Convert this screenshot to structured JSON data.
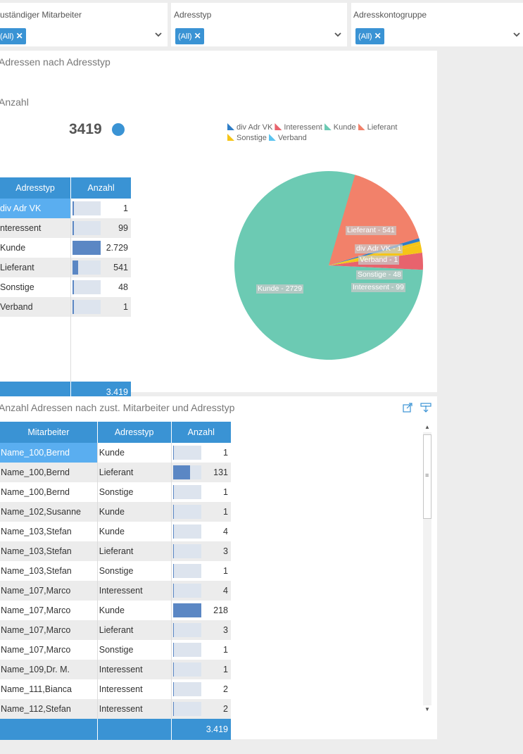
{
  "filters": [
    {
      "label": "uständiger Mitarbeiter",
      "value": "(All)"
    },
    {
      "label": "Adresstyp",
      "value": "(All)"
    },
    {
      "label": "Adresskontogruppe",
      "value": "(All)"
    }
  ],
  "panel1": {
    "title": "Adressen nach Adresstyp",
    "kpi_label": "Anzahl",
    "kpi_value": "3419",
    "table": {
      "headers": [
        "Adresstyp",
        "Anzahl"
      ],
      "rows": [
        {
          "label": "div Adr VK",
          "value": "1",
          "frac": 0.0004
        },
        {
          "label": "nteressent",
          "value": "99",
          "frac": 0.036
        },
        {
          "label": "Kunde",
          "value": "2.729",
          "frac": 1.0
        },
        {
          "label": "Lieferant",
          "value": "541",
          "frac": 0.198
        },
        {
          "label": "Sonstige",
          "value": "48",
          "frac": 0.018
        },
        {
          "label": "Verband",
          "value": "1",
          "frac": 0.0004
        }
      ],
      "total": "3.419"
    }
  },
  "chart_data": {
    "type": "pie",
    "title": "",
    "legend": [
      {
        "name": "div Adr VK",
        "color": "#2f7ec7"
      },
      {
        "name": "Interessent",
        "color": "#e8636d"
      },
      {
        "name": "Kunde",
        "color": "#6ccab3"
      },
      {
        "name": "Lieferant",
        "color": "#f2816a"
      },
      {
        "name": "Sonstige",
        "color": "#f5c518"
      },
      {
        "name": "Verband",
        "color": "#5bc4f0"
      }
    ],
    "slices": [
      {
        "name": "Kunde",
        "value": 2729,
        "label": "Kunde - 2729",
        "color": "#6ccab3"
      },
      {
        "name": "Lieferant",
        "value": 541,
        "label": "Lieferant - 541",
        "color": "#f2816a"
      },
      {
        "name": "div Adr VK",
        "value": 1,
        "label": "div Adr VK - 1",
        "color": "#2f7ec7"
      },
      {
        "name": "Verband",
        "value": 1,
        "label": "Verband - 1",
        "color": "#f5c518"
      },
      {
        "name": "Sonstige",
        "value": 48,
        "label": "Sonstige - 48",
        "color": "#f5c518"
      },
      {
        "name": "Interessent",
        "value": 99,
        "label": "Interessent - 99",
        "color": "#e8636d"
      }
    ]
  },
  "panel2": {
    "title": "Anzahl Adressen nach zust. Mitarbeiter und Adresstyp",
    "headers": [
      "Mitarbeiter",
      "Adresstyp",
      "Anzahl"
    ],
    "rows": [
      {
        "m": "Name_100,Bernd",
        "t": "Kunde",
        "v": "1",
        "frac": 0.005
      },
      {
        "m": "Name_100,Bernd",
        "t": "Lieferant",
        "v": "131",
        "frac": 0.6
      },
      {
        "m": "Name_100,Bernd",
        "t": "Sonstige",
        "v": "1",
        "frac": 0.005
      },
      {
        "m": "Name_102,Susanne",
        "t": "Kunde",
        "v": "1",
        "frac": 0.005
      },
      {
        "m": "Name_103,Stefan",
        "t": "Kunde",
        "v": "4",
        "frac": 0.018
      },
      {
        "m": "Name_103,Stefan",
        "t": "Lieferant",
        "v": "3",
        "frac": 0.014
      },
      {
        "m": "Name_103,Stefan",
        "t": "Sonstige",
        "v": "1",
        "frac": 0.005
      },
      {
        "m": "Name_107,Marco",
        "t": "Interessent",
        "v": "4",
        "frac": 0.018
      },
      {
        "m": "Name_107,Marco",
        "t": "Kunde",
        "v": "218",
        "frac": 1.0
      },
      {
        "m": "Name_107,Marco",
        "t": "Lieferant",
        "v": "3",
        "frac": 0.014
      },
      {
        "m": "Name_107,Marco",
        "t": "Sonstige",
        "v": "1",
        "frac": 0.005
      },
      {
        "m": "Name_109,Dr. M.",
        "t": "Interessent",
        "v": "1",
        "frac": 0.005
      },
      {
        "m": "Name_111,Bianca",
        "t": "Interessent",
        "v": "2",
        "frac": 0.009
      },
      {
        "m": "Name_112,Stefan",
        "t": "Interessent",
        "v": "2",
        "frac": 0.009
      }
    ],
    "total": "3.419",
    "icons": [
      "expand-icon",
      "export-icon"
    ]
  }
}
